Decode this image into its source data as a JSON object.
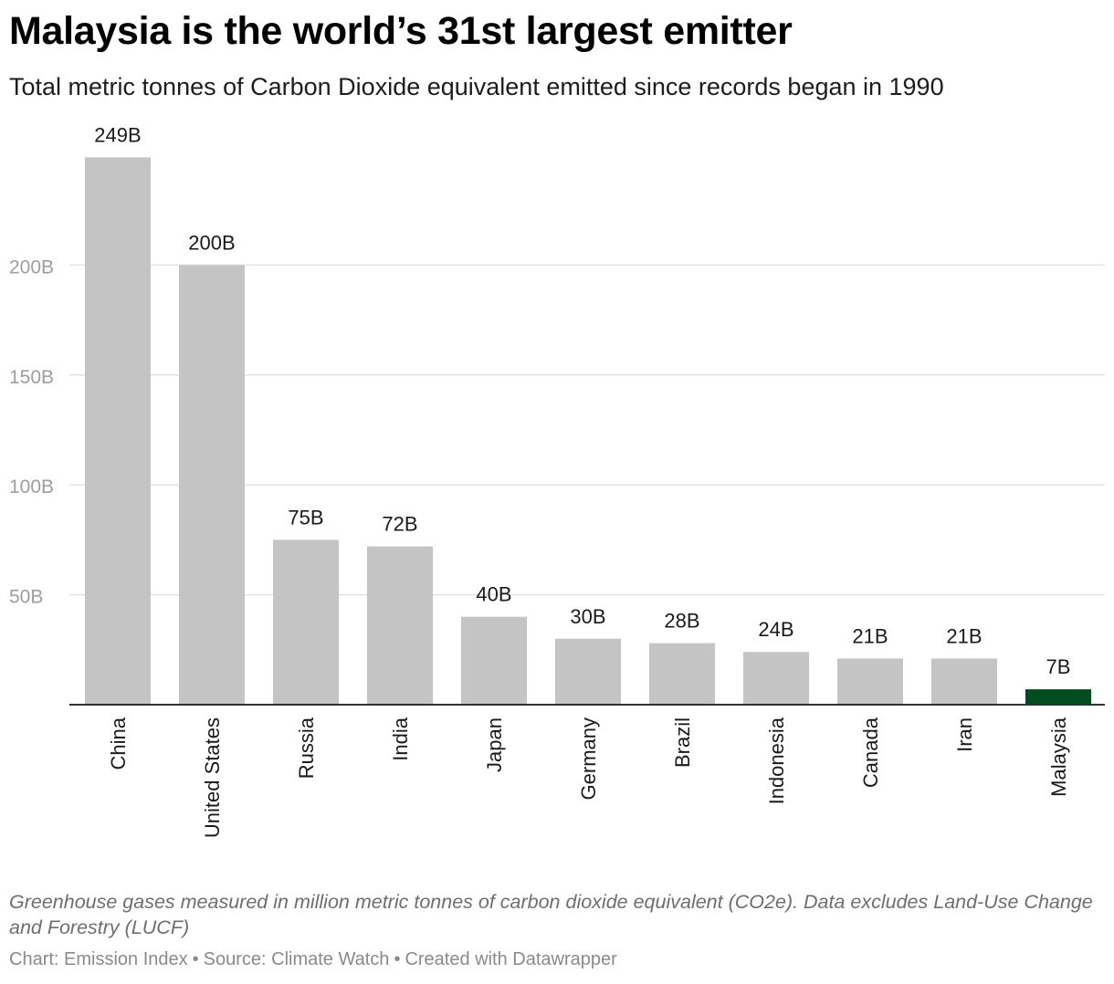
{
  "header": {
    "title": "Malaysia is the world’s 31st largest emitter",
    "subtitle": "Total metric tonnes of Carbon Dioxide equivalent emitted since records began in 1990"
  },
  "chart_data": {
    "type": "bar",
    "categories": [
      "China",
      "United States",
      "Russia",
      "India",
      "Japan",
      "Germany",
      "Brazil",
      "Indonesia",
      "Canada",
      "Iran",
      "Malaysia"
    ],
    "values": [
      249,
      200,
      75,
      72,
      40,
      30,
      28,
      24,
      21,
      21,
      7
    ],
    "value_labels": [
      "249B",
      "200B",
      "75B",
      "72B",
      "40B",
      "30B",
      "28B",
      "24B",
      "21B",
      "21B",
      "7B"
    ],
    "unit": "B",
    "yticks": [
      50,
      100,
      150,
      200
    ],
    "ytick_labels": [
      "50B",
      "100B",
      "150B",
      "200B"
    ],
    "ylim": [
      0,
      250
    ],
    "grid": true,
    "legend": "none",
    "x_label_orientation": "vertical",
    "colors": {
      "default_bar": "#c4c4c4",
      "highlight_bar": "#024d1f",
      "gridline": "#e2e2e2",
      "baseline": "#333333",
      "tick_label": "#9e9e9e",
      "value_label": "#1a1a1a"
    },
    "highlight": "Malaysia"
  },
  "footer": {
    "notes": "Greenhouse gases measured in million metric tonnes of carbon dioxide equivalent (CO2e). Data excludes Land-Use Change and Forestry (LUCF)",
    "chart_credit": "Chart: Emission Index",
    "source": "Source: Climate Watch",
    "created_with": "Created with Datawrapper",
    "separator": "•"
  }
}
